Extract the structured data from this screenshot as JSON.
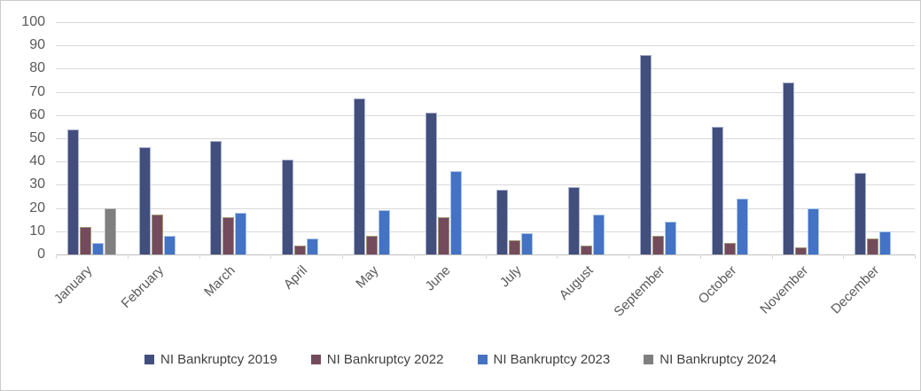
{
  "chart_data": {
    "type": "bar",
    "title": "",
    "xlabel": "",
    "ylabel": "",
    "ylim": [
      0,
      100
    ],
    "ytick_interval": 10,
    "ytick_labels": [
      "0",
      "10",
      "20",
      "30",
      "40",
      "50",
      "60",
      "70",
      "80",
      "90",
      "100"
    ],
    "grid": "horizontal",
    "legend_position": "bottom",
    "categories": [
      "January",
      "February",
      "March",
      "April",
      "May",
      "June",
      "July",
      "August",
      "September",
      "October",
      "November",
      "December"
    ],
    "series": [
      {
        "name": "NI Bankruptcy 2019",
        "color": "#424e7c",
        "border_color": "#aab2d0",
        "values": [
          54,
          46,
          49,
          41,
          67,
          61,
          28,
          29,
          86,
          55,
          74,
          35
        ]
      },
      {
        "name": "NI Bankruptcy 2022",
        "color": "#744b5c",
        "border_color": "#a29873",
        "values": [
          12,
          17,
          16,
          4,
          8,
          16,
          6,
          4,
          8,
          5,
          3,
          7
        ]
      },
      {
        "name": "NI Bankruptcy 2023",
        "color": "#4472c4",
        "border_color": "#a9c5ea",
        "values": [
          5,
          8,
          18,
          7,
          19,
          36,
          9,
          17,
          14,
          24,
          20,
          10
        ]
      },
      {
        "name": "NI Bankruptcy 2024",
        "color": "#7f7f7f",
        "border_color": "#b3b3b3",
        "values": [
          20,
          null,
          null,
          null,
          null,
          null,
          null,
          null,
          null,
          null,
          null,
          null
        ]
      }
    ],
    "colors": {
      "gridline": "#d9d9d9",
      "axis_line": "#bfbfbf",
      "axis_text": "#595959",
      "legend_text": "#3f3f3f",
      "background": "#ffffff"
    }
  }
}
